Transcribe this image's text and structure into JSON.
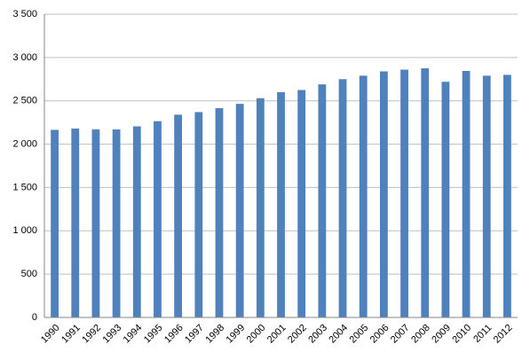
{
  "chart_data": {
    "type": "bar",
    "categories": [
      "1990",
      "1991",
      "1992",
      "1993",
      "1994",
      "1995",
      "1996",
      "1997",
      "1998",
      "1999",
      "2000",
      "2001",
      "2002",
      "2003",
      "2004",
      "2005",
      "2006",
      "2007",
      "2008",
      "2009",
      "2010",
      "2011",
      "2012"
    ],
    "values": [
      2165,
      2180,
      2170,
      2170,
      2205,
      2265,
      2340,
      2370,
      2415,
      2465,
      2530,
      2600,
      2625,
      2690,
      2750,
      2790,
      2840,
      2860,
      2875,
      2720,
      2845,
      2790,
      2800
    ],
    "color": "#4f81bd",
    "ylim": [
      0,
      3500
    ],
    "yticks": [
      0,
      500,
      {
        "value": 1000,
        "label": "1 000"
      },
      {
        "value": 1500,
        "label": "1 500"
      },
      {
        "value": 2000,
        "label": "2 000"
      },
      {
        "value": 2500,
        "label": "2 500"
      },
      {
        "value": 3000,
        "label": "3 000"
      },
      {
        "value": 3500,
        "label": "3 500"
      }
    ],
    "grid": true
  }
}
